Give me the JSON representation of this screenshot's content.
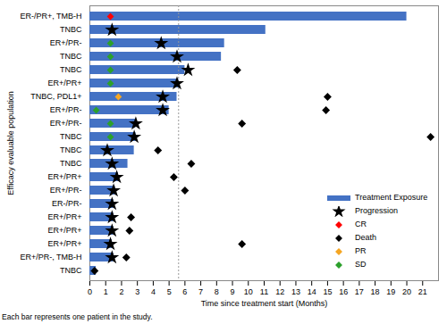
{
  "chart_data": {
    "type": "swimmer",
    "orientation": "horizontal",
    "x_label": "Time since treatment start (Months)",
    "y_label": "Efficacy evaluable population",
    "caption": "Each bar represents one patient in the study.",
    "categories": [
      "ER-/PR+, TMB-H",
      "TNBC",
      "ER+/PR-",
      "TNBC",
      "TNBC",
      "ER+/PR+",
      "TNBC, PDL1+",
      "ER+/PR-",
      "ER+/PR-",
      "TNBC",
      "TNBC",
      "TNBC",
      "ER+/PR+",
      "ER+/PR-",
      "ER-/PR-",
      "ER+/PR+",
      "ER+/PR+",
      "ER+/PR+",
      "ER+/PR-, TMB-H",
      "TNBC"
    ],
    "series": [
      {
        "name": "Treatment Exposure",
        "type": "bar",
        "color": "#4472c4",
        "values": [
          20.0,
          11.1,
          8.5,
          8.3,
          6.0,
          5.6,
          5.5,
          5.0,
          2.9,
          2.9,
          2.8,
          2.4,
          1.8,
          1.6,
          1.5,
          1.5,
          1.5,
          1.4,
          1.5,
          0.4
        ]
      },
      {
        "name": "Progression",
        "type": "scatter",
        "marker": "star",
        "color": "#000000",
        "values": [
          null,
          1.4,
          4.5,
          5.5,
          6.2,
          5.5,
          4.6,
          4.6,
          2.9,
          2.8,
          1.1,
          1.4,
          1.7,
          1.5,
          1.4,
          1.4,
          1.4,
          1.3,
          1.4,
          null
        ]
      },
      {
        "name": "CR",
        "type": "scatter",
        "marker": "diamond",
        "color": "#ff0000",
        "values": [
          1.3,
          null,
          null,
          null,
          null,
          null,
          null,
          null,
          null,
          null,
          null,
          null,
          null,
          null,
          null,
          null,
          null,
          null,
          null,
          null
        ]
      },
      {
        "name": "Death",
        "type": "scatter",
        "marker": "diamond",
        "color": "#000000",
        "values": [
          null,
          null,
          null,
          null,
          9.3,
          null,
          15.0,
          14.9,
          9.6,
          21.5,
          4.3,
          6.4,
          5.3,
          6.0,
          null,
          2.6,
          2.5,
          9.6,
          2.3,
          0.3
        ]
      },
      {
        "name": "PR",
        "type": "scatter",
        "marker": "diamond",
        "color": "#f5a623",
        "values": [
          null,
          null,
          null,
          null,
          null,
          null,
          1.8,
          null,
          null,
          null,
          null,
          null,
          null,
          null,
          null,
          null,
          null,
          null,
          null,
          null
        ]
      },
      {
        "name": "SD",
        "type": "scatter",
        "marker": "diamond",
        "color": "#2ca02c",
        "values": [
          null,
          null,
          1.3,
          1.3,
          1.3,
          1.3,
          null,
          0.4,
          1.3,
          1.3,
          null,
          null,
          null,
          null,
          null,
          null,
          null,
          null,
          null,
          null
        ]
      }
    ],
    "reference_line_x": 5.6,
    "xlim": [
      0,
      22
    ],
    "xticks": [
      0,
      1,
      2,
      3,
      4,
      5,
      6,
      7,
      8,
      9,
      10,
      11,
      12,
      13,
      14,
      15,
      16,
      17,
      18,
      19,
      20,
      21
    ],
    "legend": "bottom-right",
    "grid": false
  }
}
